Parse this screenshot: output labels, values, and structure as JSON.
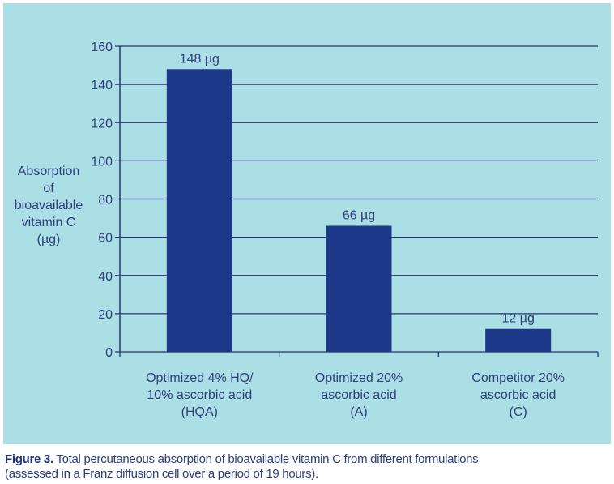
{
  "chart_data": {
    "type": "bar",
    "title": "",
    "ylabel": "Absorption of bioavailable vitamin C (µg)",
    "ylabel_lines": [
      "Absorption",
      "of",
      "bioavailable",
      "vitamin C",
      "(µg)"
    ],
    "xlabel": "",
    "ylim": [
      0,
      160
    ],
    "yticks": [
      0,
      20,
      40,
      60,
      80,
      100,
      120,
      140,
      160
    ],
    "grid": true,
    "categories": [
      [
        "Optimized 4% HQ/",
        "10% ascorbic acid",
        "(HQA)"
      ],
      [
        "Optimized 20%",
        "ascorbic acid",
        "(A)"
      ],
      [
        "Competitor 20%",
        "ascorbic acid",
        "(C)"
      ]
    ],
    "values": [
      148,
      66,
      12
    ],
    "data_labels": [
      "148 µg",
      "66 µg",
      "12 µg"
    ],
    "colors": {
      "bar": "#1b3889",
      "axis": "#23366e",
      "background": "#abdfe5",
      "text": "#2c3f7a"
    }
  },
  "caption": {
    "label": "Figure 3.",
    "text": " Total percutaneous absorption of bioavailable vitamin C from different formulations",
    "text2": "(assessed in a Franz diffusion cell over a period of 19 hours)."
  }
}
